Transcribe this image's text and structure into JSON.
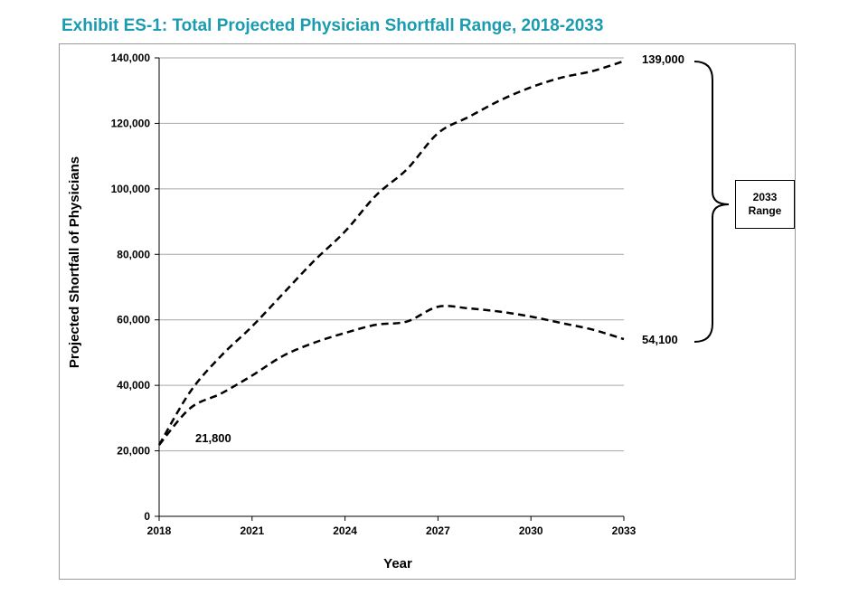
{
  "title": "Exhibit ES-1: Total Projected Physician Shortfall Range, 2018-2033",
  "chart_data": {
    "type": "line",
    "xlabel": "Year",
    "ylabel": "Projected Shortfall of Physicians",
    "xlim": [
      2018,
      2033
    ],
    "ylim": [
      0,
      140000
    ],
    "x_ticks": [
      "2018",
      "2021",
      "2024",
      "2027",
      "2030",
      "2033"
    ],
    "y_ticks": [
      "0",
      "20,000",
      "40,000",
      "60,000",
      "80,000",
      "100,000",
      "120,000",
      "140,000"
    ],
    "grid": "horizontal",
    "series": [
      {
        "x": [
          2018,
          2019,
          2020,
          2021,
          2022,
          2023,
          2024,
          2025,
          2026,
          2027,
          2028,
          2029,
          2030,
          2031,
          2032,
          2033
        ],
        "values": [
          21800,
          38000,
          49000,
          58000,
          68000,
          78000,
          87000,
          98000,
          106000,
          117000,
          122000,
          127000,
          131000,
          134000,
          136000,
          139000
        ],
        "style": "dashed"
      },
      {
        "x": [
          2018,
          2019,
          2020,
          2021,
          2022,
          2023,
          2024,
          2025,
          2026,
          2027,
          2028,
          2029,
          2030,
          2031,
          2032,
          2033
        ],
        "values": [
          21800,
          33000,
          37500,
          43000,
          49000,
          53000,
          56000,
          58500,
          59500,
          64000,
          63500,
          62500,
          61000,
          59000,
          57000,
          54100
        ],
        "style": "dashed"
      }
    ],
    "annotations": {
      "start": "21,800",
      "high_end": "139,000",
      "low_end": "54,100",
      "range_line1": "2033",
      "range_line2": "Range"
    }
  }
}
